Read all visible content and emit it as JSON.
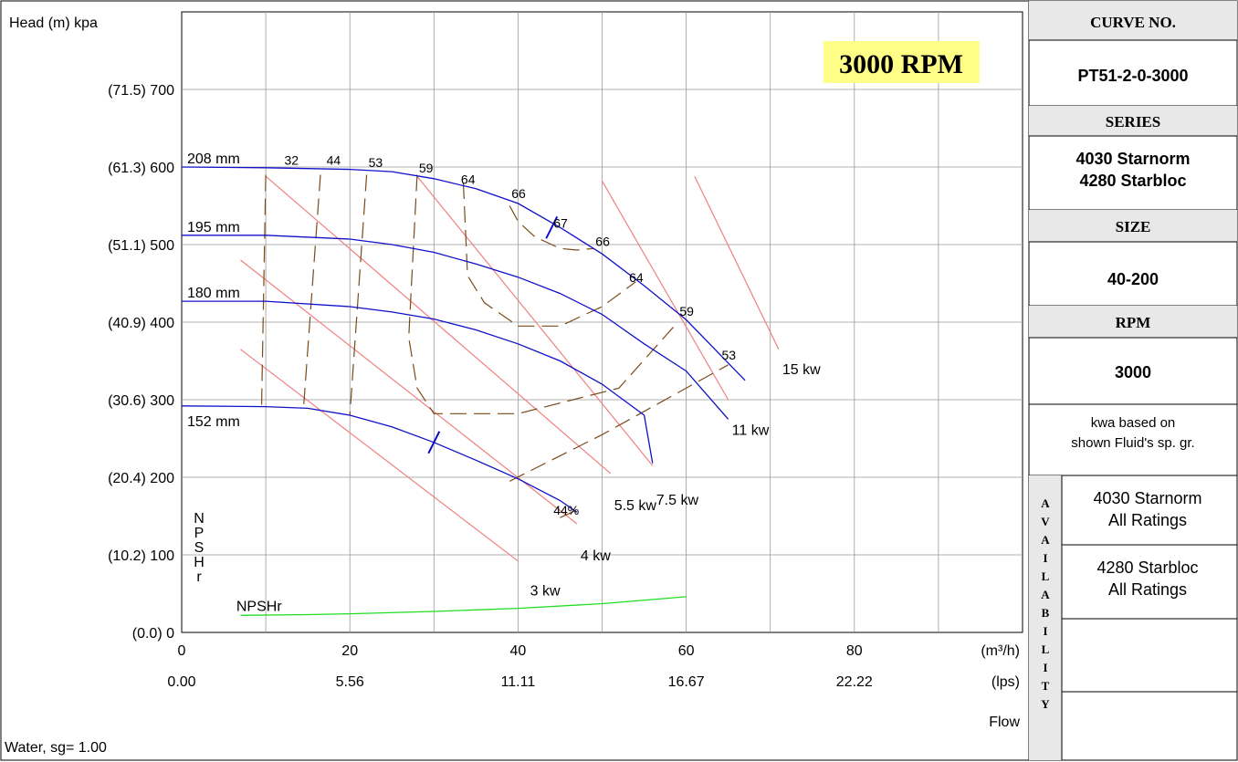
{
  "chart_data": {
    "type": "line",
    "title": "3000 RPM",
    "y_axis_title": "Head (m)  kpa",
    "y_ticks": [
      {
        "value": 0,
        "label": "(0.0) 0"
      },
      {
        "value": 100,
        "label": "(10.2) 100"
      },
      {
        "value": 200,
        "label": "(20.4) 200"
      },
      {
        "value": 300,
        "label": "(30.6) 300"
      },
      {
        "value": 400,
        "label": "(40.9) 400"
      },
      {
        "value": 500,
        "label": "(51.1) 500"
      },
      {
        "value": 600,
        "label": "(61.3) 600"
      },
      {
        "value": 700,
        "label": "(71.5) 700"
      }
    ],
    "ylim": [
      0,
      800
    ],
    "x_ticks": [
      {
        "value": 0,
        "m3h": "0",
        "lps": "0.00"
      },
      {
        "value": 20,
        "m3h": "20",
        "lps": "5.56"
      },
      {
        "value": 40,
        "m3h": "40",
        "lps": "11.11"
      },
      {
        "value": 60,
        "m3h": "60",
        "lps": "16.67"
      },
      {
        "value": 80,
        "m3h": "80",
        "lps": "22.22"
      }
    ],
    "xlim": [
      0,
      100
    ],
    "x_unit_m3h": "(m³/h)",
    "x_unit_lps": "(lps)",
    "x_axis_title": "Flow",
    "fluid_note": "Water, sg= 1.00",
    "npsh_vertical_label": [
      "N",
      "P",
      "S",
      "H",
      "r"
    ],
    "head_curves": [
      {
        "name": "208 mm",
        "points": [
          [
            0,
            600
          ],
          [
            10,
            599
          ],
          [
            20,
            597
          ],
          [
            25,
            594
          ],
          [
            30,
            585
          ],
          [
            35,
            572
          ],
          [
            40,
            553
          ],
          [
            45,
            522
          ],
          [
            50,
            488
          ],
          [
            55,
            447
          ],
          [
            60,
            403
          ],
          [
            67,
            325
          ]
        ]
      },
      {
        "name": "195 mm",
        "points": [
          [
            0,
            512
          ],
          [
            10,
            512
          ],
          [
            20,
            507
          ],
          [
            25,
            500
          ],
          [
            30,
            490
          ],
          [
            35,
            475
          ],
          [
            40,
            458
          ],
          [
            45,
            437
          ],
          [
            50,
            410
          ],
          [
            55,
            372
          ],
          [
            60,
            337
          ],
          [
            65,
            275
          ]
        ]
      },
      {
        "name": "180 mm",
        "points": [
          [
            0,
            427
          ],
          [
            10,
            427
          ],
          [
            20,
            420
          ],
          [
            25,
            413
          ],
          [
            30,
            404
          ],
          [
            35,
            390
          ],
          [
            40,
            372
          ],
          [
            45,
            350
          ],
          [
            50,
            320
          ],
          [
            55,
            280
          ],
          [
            56,
            218
          ]
        ]
      },
      {
        "name": "152 mm",
        "points": [
          [
            0,
            292
          ],
          [
            10,
            291
          ],
          [
            15,
            289
          ],
          [
            20,
            280
          ],
          [
            25,
            265
          ],
          [
            30,
            245
          ],
          [
            35,
            222
          ],
          [
            40,
            198
          ],
          [
            45,
            170
          ],
          [
            47,
            155
          ]
        ]
      }
    ],
    "npsh_curve": {
      "name": "NPSHr",
      "points": [
        [
          7,
          22
        ],
        [
          15,
          23
        ],
        [
          20,
          24
        ],
        [
          30,
          27
        ],
        [
          40,
          31
        ],
        [
          50,
          37
        ],
        [
          60,
          46
        ]
      ]
    },
    "power_lines": [
      {
        "name": "3 kw",
        "points": [
          [
            7,
            365
          ],
          [
            40,
            92
          ]
        ],
        "label_at": [
          41,
          55
        ]
      },
      {
        "name": "4 kw",
        "points": [
          [
            7,
            480
          ],
          [
            47,
            140
          ]
        ],
        "label_at": [
          47,
          100
        ]
      },
      {
        "name": "5.5 kw",
        "points": [
          [
            10,
            588
          ],
          [
            51,
            205
          ]
        ],
        "label_at": [
          51,
          165
        ]
      },
      {
        "name": "7.5 kw",
        "points": [
          [
            28,
            588
          ],
          [
            56,
            215
          ]
        ],
        "label_at": [
          56,
          172
        ]
      },
      {
        "name": "11 kw",
        "points": [
          [
            50,
            582
          ],
          [
            65,
            300
          ]
        ],
        "label_at": [
          65,
          262
        ]
      },
      {
        "name": "15 kw",
        "points": [
          [
            61,
            588
          ],
          [
            71,
            365
          ]
        ],
        "label_at": [
          71,
          340
        ]
      }
    ],
    "efficiency_labels": [
      {
        "text": "32",
        "at": [
          12,
          603
        ]
      },
      {
        "text": "44",
        "at": [
          17,
          603
        ]
      },
      {
        "text": "53",
        "at": [
          22,
          600
        ]
      },
      {
        "text": "59",
        "at": [
          28,
          593
        ]
      },
      {
        "text": "64",
        "at": [
          33,
          578
        ]
      },
      {
        "text": "66",
        "at": [
          39,
          560
        ]
      },
      {
        "text": "67",
        "at": [
          44,
          522
        ]
      },
      {
        "text": "66",
        "at": [
          49,
          498
        ]
      },
      {
        "text": "64",
        "at": [
          53,
          452
        ]
      },
      {
        "text": "59",
        "at": [
          59,
          408
        ]
      },
      {
        "text": "53",
        "at": [
          64,
          352
        ]
      },
      {
        "text": "44%",
        "at": [
          44,
          152
        ]
      }
    ],
    "efficiency_contours": [
      {
        "name": "32",
        "points": [
          [
            10,
            590
          ],
          [
            9.5,
            290
          ]
        ]
      },
      {
        "name": "44",
        "points": [
          [
            16.5,
            590
          ],
          [
            14.5,
            290
          ]
        ]
      },
      {
        "name": "53",
        "points": [
          [
            22,
            590
          ],
          [
            20,
            280
          ]
        ]
      },
      {
        "name": "59",
        "points": [
          [
            28,
            590
          ],
          [
            27,
            380
          ],
          [
            28,
            315
          ],
          [
            30,
            282
          ],
          [
            40,
            282
          ],
          [
            52,
            315
          ],
          [
            59,
            400
          ]
        ]
      },
      {
        "name": "64",
        "points": [
          [
            33.5,
            580
          ],
          [
            34,
            460
          ],
          [
            36,
            425
          ],
          [
            40,
            395
          ],
          [
            45,
            395
          ],
          [
            50,
            420
          ],
          [
            54,
            452
          ]
        ]
      },
      {
        "name": "66",
        "points": [
          [
            39,
            550
          ],
          [
            40,
            530
          ],
          [
            42,
            510
          ],
          [
            45,
            495
          ],
          [
            47,
            493
          ],
          [
            49,
            495
          ]
        ]
      },
      {
        "name": "53b",
        "points": [
          [
            39,
            195
          ],
          [
            50,
            255
          ],
          [
            65,
            345
          ]
        ]
      },
      {
        "name": "44b",
        "points": [
          [
            45,
            148
          ],
          [
            47,
            158
          ]
        ]
      }
    ],
    "bep_marks": [
      [
        44,
        522
      ],
      [
        30,
        245
      ]
    ],
    "legend": "none",
    "grid": true
  },
  "side_panel": {
    "curve_no_head": "CURVE NO.",
    "curve_no": "PT51-2-0-3000",
    "series_head": "SERIES",
    "series_lines": [
      "4030 Starnorm",
      "4280 Starbloc"
    ],
    "size_head": "SIZE",
    "size": "40-200",
    "rpm_head": "RPM",
    "rpm": "3000",
    "note_lines": [
      "kwa based on",
      "shown Fluid's sp. gr."
    ],
    "availability_letters": [
      "A",
      "V",
      "A",
      "I",
      "L",
      "A",
      "B",
      "I",
      "L",
      "I",
      "T",
      "Y"
    ],
    "availability_rows": [
      {
        "line1": "4030 Starnorm",
        "line2": "All Ratings"
      },
      {
        "line1": "4280 Starbloc",
        "line2": "All Ratings"
      },
      {
        "line1": "",
        "line2": ""
      },
      {
        "line1": "",
        "line2": ""
      }
    ]
  },
  "colors": {
    "head_curve": "#1010c8",
    "npsh": "#22dd22",
    "power": "#f08080",
    "efficiency": "#7a4a1a",
    "title_bg": "#ffff88",
    "grid": "#999999",
    "panel_bg": "#e8e8e8"
  }
}
